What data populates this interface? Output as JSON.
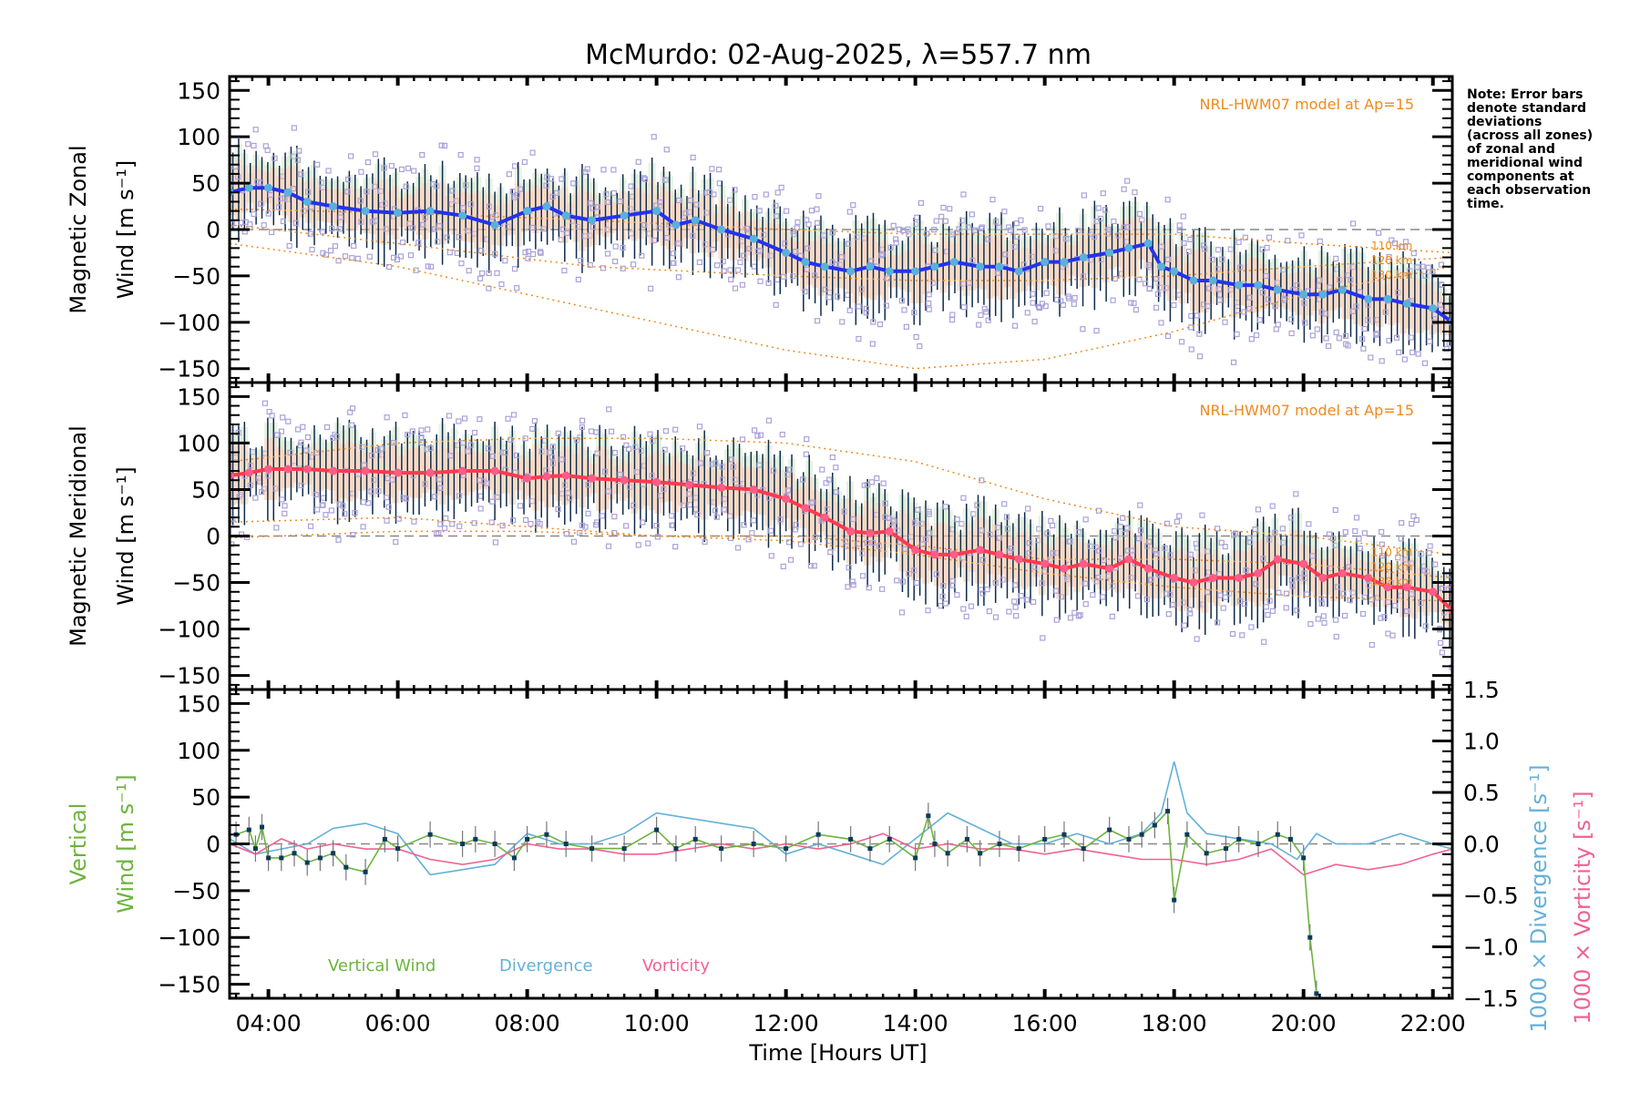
{
  "title": "McMurdo: 02-Aug-2025, λ=557.7 nm",
  "note_lines": [
    "Note: Error bars",
    "denote standard",
    "deviations",
    "(across all zones)",
    "of zonal and",
    "meridional wind",
    "components at",
    "each observation",
    "time."
  ],
  "colors": {
    "zonal_line": "#2233ee",
    "zonal_marker": "#5ab0dc",
    "meridional_line": "#ff3a50",
    "meridional_marker": "#ff5c88",
    "model": "#f08a1c",
    "scatter": "#a9a2da",
    "errorbar": "#0e2a4a",
    "vertical_wind": "#6db33f",
    "divergence": "#64b0d8",
    "vorticity": "#f0628f",
    "vz_marker": "#0b3a5c",
    "zero_line": "#888888"
  },
  "chart_data": [
    {
      "type": "line",
      "panel": "zonal",
      "ylabel_line1": "Magnetic Zonal",
      "ylabel_line2": "Wind [m s⁻¹]",
      "ylim": [
        -165,
        165
      ],
      "yticks": [
        -150,
        -100,
        -50,
        0,
        50,
        100,
        150
      ],
      "ytick_labels": [
        "−150",
        "−100",
        "−50",
        "0",
        "50",
        "100",
        "150"
      ],
      "xlim": [
        3.4,
        22.3
      ],
      "model_label": "NRL-HWM07 model at Ap=15",
      "altitude_labels": [
        "110 km",
        "120 km",
        "130 km"
      ],
      "series": [
        {
          "name": "Magnetic Zonal Wind",
          "x": [
            3.4,
            3.7,
            4.0,
            4.3,
            4.6,
            5.0,
            5.5,
            6.0,
            6.5,
            7.0,
            7.5,
            8.0,
            8.3,
            8.6,
            9.0,
            9.5,
            10.0,
            10.3,
            10.6,
            11.0,
            11.5,
            12.0,
            12.3,
            12.6,
            13.0,
            13.3,
            13.6,
            14.0,
            14.3,
            14.6,
            15.0,
            15.3,
            15.6,
            16.0,
            16.3,
            16.6,
            17.0,
            17.3,
            17.6,
            17.8,
            18.0,
            18.3,
            18.6,
            19.0,
            19.3,
            19.6,
            20.0,
            20.3,
            20.6,
            21.0,
            21.3,
            21.6,
            22.0,
            22.3
          ],
          "y": [
            40,
            45,
            45,
            40,
            30,
            25,
            20,
            18,
            20,
            15,
            5,
            20,
            25,
            15,
            10,
            15,
            20,
            5,
            10,
            0,
            -10,
            -25,
            -35,
            -40,
            -45,
            -40,
            -45,
            -45,
            -40,
            -35,
            -40,
            -40,
            -45,
            -35,
            -35,
            -30,
            -25,
            -20,
            -15,
            -40,
            -45,
            -55,
            -55,
            -60,
            -60,
            -65,
            -70,
            -70,
            -65,
            -75,
            -75,
            -80,
            -85,
            -100
          ]
        },
        {
          "name": "HWM07 110 km",
          "x": [
            3.4,
            6,
            9,
            12,
            14,
            16,
            18,
            20,
            22.3
          ],
          "y": [
            22,
            18,
            10,
            0,
            -5,
            -5,
            -5,
            -15,
            -25
          ]
        },
        {
          "name": "HWM07 120 km",
          "x": [
            3.4,
            6,
            9,
            12,
            14,
            16,
            18,
            20,
            22.3
          ],
          "y": [
            5,
            -15,
            -40,
            -50,
            -55,
            -55,
            -50,
            -40,
            -30
          ]
        },
        {
          "name": "HWM07 130 km",
          "x": [
            3.4,
            6,
            9,
            12,
            14,
            16,
            18,
            20,
            22.3
          ],
          "y": [
            -15,
            -40,
            -85,
            -130,
            -150,
            -140,
            -110,
            -70,
            -40
          ]
        }
      ]
    },
    {
      "type": "line",
      "panel": "meridional",
      "ylabel_line1": "Magnetic Meridional",
      "ylabel_line2": "Wind [m s⁻¹]",
      "ylim": [
        -165,
        165
      ],
      "yticks": [
        -150,
        -100,
        -50,
        0,
        50,
        100,
        150
      ],
      "ytick_labels": [
        "−150",
        "−100",
        "−50",
        "0",
        "50",
        "100",
        "150"
      ],
      "xlim": [
        3.4,
        22.3
      ],
      "model_label": "NRL-HWM07 model at Ap=15",
      "altitude_labels": [
        "110 km",
        "120 km",
        "130 km"
      ],
      "series": [
        {
          "name": "Magnetic Meridional Wind",
          "x": [
            3.4,
            3.7,
            4.0,
            4.3,
            4.6,
            5.0,
            5.5,
            6.0,
            6.5,
            7.0,
            7.5,
            8.0,
            8.3,
            8.6,
            9.0,
            9.5,
            10.0,
            10.5,
            11.0,
            11.5,
            12.0,
            12.3,
            12.6,
            13.0,
            13.3,
            13.6,
            14.0,
            14.3,
            14.6,
            15.0,
            15.3,
            15.6,
            16.0,
            16.3,
            16.6,
            17.0,
            17.3,
            17.6,
            18.0,
            18.3,
            18.6,
            19.0,
            19.3,
            19.6,
            20.0,
            20.3,
            20.6,
            21.0,
            21.3,
            21.6,
            22.0,
            22.3
          ],
          "y": [
            65,
            68,
            72,
            72,
            72,
            70,
            70,
            68,
            68,
            70,
            70,
            62,
            64,
            65,
            62,
            60,
            58,
            55,
            52,
            50,
            40,
            30,
            20,
            5,
            3,
            5,
            -15,
            -20,
            -20,
            -15,
            -20,
            -25,
            -30,
            -35,
            -30,
            -35,
            -25,
            -35,
            -45,
            -50,
            -45,
            -45,
            -40,
            -25,
            -30,
            -45,
            -40,
            -45,
            -55,
            -55,
            -60,
            -80
          ]
        },
        {
          "name": "HWM07 110 km",
          "x": [
            3.4,
            6,
            8,
            10,
            12,
            14,
            16,
            18,
            20,
            22.3
          ],
          "y": [
            80,
            100,
            105,
            105,
            100,
            80,
            40,
            10,
            0,
            -20
          ]
        },
        {
          "name": "HWM07 120 km",
          "x": [
            3.4,
            6,
            8,
            10,
            12,
            14,
            16,
            18,
            20,
            22.3
          ],
          "y": [
            15,
            20,
            10,
            0,
            0,
            -10,
            -25,
            -25,
            -30,
            -45
          ]
        },
        {
          "name": "HWM07 130 km",
          "x": [
            3.4,
            6,
            8,
            10,
            12,
            14,
            16,
            18,
            20,
            22.3
          ],
          "y": [
            -2,
            5,
            5,
            0,
            -5,
            -20,
            -40,
            -55,
            -65,
            -70
          ]
        }
      ]
    },
    {
      "type": "line",
      "panel": "vertical",
      "ylabel_line1": "Vertical",
      "ylabel_line2": "Wind [m s⁻¹]",
      "ylim": [
        -165,
        165
      ],
      "yticks": [
        -150,
        -100,
        -50,
        0,
        50,
        100,
        150
      ],
      "ytick_labels": [
        "−150",
        "−100",
        "−50",
        "0",
        "50",
        "100",
        "150"
      ],
      "y2lim": [
        -1.5,
        1.5
      ],
      "y2ticks": [
        -1.5,
        -1.0,
        -0.5,
        0.0,
        0.5,
        1.0,
        1.5
      ],
      "y2tick_labels": [
        "−1.5",
        "−1.0",
        "−0.5",
        "0.0",
        "0.5",
        "1.0",
        "1.5"
      ],
      "y2label_divergence": "1000 × Divergence [s⁻¹]",
      "y2label_vorticity": "1000 × Vorticity [s⁻¹]",
      "xlim": [
        3.4,
        22.3
      ],
      "xticks": [
        4,
        6,
        8,
        10,
        12,
        14,
        16,
        18,
        20,
        22
      ],
      "xtick_labels": [
        "04:00",
        "06:00",
        "08:00",
        "10:00",
        "12:00",
        "14:00",
        "16:00",
        "18:00",
        "20:00",
        "22:00"
      ],
      "xlabel": "Time [Hours UT]",
      "legend": [
        "Vertical Wind",
        "Divergence",
        "Vorticity"
      ],
      "legend_position": "bottom-left",
      "series": [
        {
          "name": "Vertical Wind",
          "x": [
            3.5,
            3.7,
            3.8,
            3.9,
            4.0,
            4.2,
            4.4,
            4.6,
            4.8,
            5.0,
            5.2,
            5.5,
            5.8,
            6.0,
            6.5,
            7.0,
            7.2,
            7.5,
            7.8,
            8.0,
            8.3,
            8.6,
            9.0,
            9.5,
            10.0,
            10.3,
            10.6,
            11.0,
            11.5,
            12.0,
            12.5,
            13.0,
            13.3,
            13.6,
            14.0,
            14.2,
            14.3,
            14.5,
            14.8,
            15.0,
            15.3,
            15.6,
            16.0,
            16.3,
            16.6,
            17.0,
            17.3,
            17.5,
            17.7,
            17.9,
            18.0,
            18.2,
            18.5,
            18.8,
            19.0,
            19.3,
            19.6,
            19.8,
            20.0,
            20.1,
            20.2
          ],
          "y": [
            10,
            15,
            -5,
            18,
            -15,
            -15,
            -10,
            -20,
            -15,
            -10,
            -25,
            -30,
            5,
            -5,
            10,
            0,
            5,
            0,
            -15,
            5,
            10,
            0,
            -5,
            -5,
            15,
            -5,
            5,
            -5,
            0,
            -5,
            10,
            5,
            -5,
            5,
            -15,
            30,
            0,
            -10,
            5,
            -10,
            0,
            -5,
            5,
            10,
            -5,
            15,
            5,
            10,
            20,
            35,
            -60,
            10,
            -10,
            -5,
            5,
            0,
            10,
            5,
            -15,
            -100,
            -160
          ]
        },
        {
          "name": "Divergence",
          "x": [
            3.4,
            3.8,
            4.2,
            4.6,
            5.0,
            5.5,
            6.0,
            6.5,
            7.0,
            7.5,
            8.0,
            8.5,
            9.0,
            9.5,
            10.0,
            10.5,
            11.0,
            11.5,
            12.0,
            12.5,
            13.0,
            13.5,
            14.0,
            14.5,
            15.0,
            15.5,
            16.0,
            16.5,
            17.0,
            17.5,
            17.8,
            18.0,
            18.2,
            18.5,
            19.0,
            19.5,
            19.9,
            20.2,
            20.5,
            21.0,
            21.5,
            22.0,
            22.3
          ],
          "y": [
            0.05,
            -0.1,
            -0.05,
            0.0,
            0.15,
            0.2,
            0.1,
            -0.3,
            -0.25,
            -0.2,
            0.1,
            0.0,
            0.0,
            0.1,
            0.3,
            0.25,
            0.2,
            0.15,
            -0.1,
            0.0,
            -0.1,
            -0.2,
            0.05,
            0.3,
            0.15,
            0.0,
            0.0,
            0.1,
            0.0,
            0.1,
            0.3,
            0.8,
            0.3,
            0.1,
            0.05,
            0.0,
            -0.15,
            0.1,
            0.0,
            0.0,
            0.1,
            0.0,
            -0.05
          ]
        },
        {
          "name": "Vorticity",
          "x": [
            3.4,
            3.8,
            4.2,
            4.6,
            5.0,
            5.5,
            6.0,
            6.5,
            7.0,
            7.5,
            8.0,
            8.5,
            9.0,
            9.5,
            10.0,
            10.5,
            11.0,
            11.5,
            12.0,
            12.5,
            13.0,
            13.5,
            14.0,
            14.5,
            15.0,
            15.5,
            16.0,
            16.5,
            17.0,
            17.5,
            18.0,
            18.5,
            19.0,
            19.5,
            20.0,
            20.5,
            21.0,
            21.5,
            22.0,
            22.3
          ],
          "y": [
            0.0,
            -0.1,
            0.05,
            -0.05,
            0.0,
            -0.05,
            -0.05,
            -0.15,
            -0.2,
            -0.15,
            0.0,
            -0.05,
            -0.05,
            -0.1,
            -0.1,
            -0.05,
            0.0,
            -0.05,
            0.0,
            -0.05,
            0.0,
            0.1,
            -0.05,
            0.0,
            -0.05,
            -0.05,
            -0.1,
            -0.05,
            -0.1,
            -0.15,
            -0.15,
            -0.2,
            -0.15,
            -0.05,
            -0.3,
            -0.2,
            -0.25,
            -0.2,
            -0.1,
            -0.05
          ]
        }
      ]
    }
  ]
}
